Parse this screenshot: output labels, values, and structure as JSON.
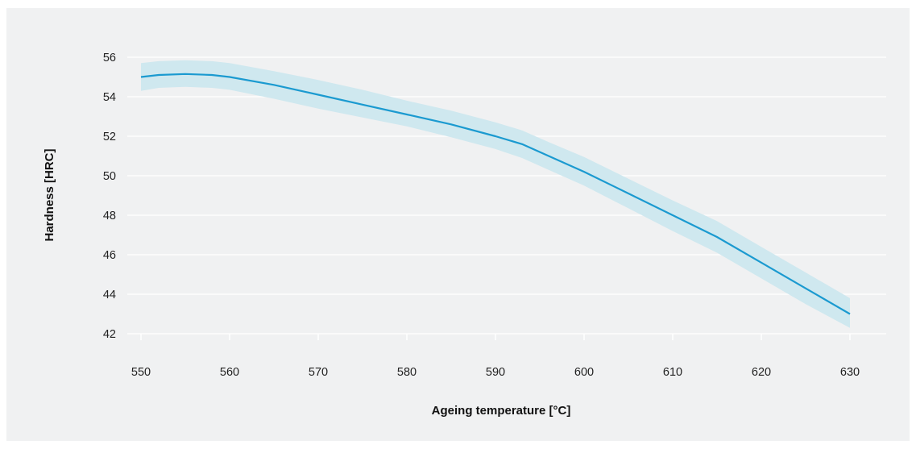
{
  "chart_data": {
    "type": "line",
    "title": "",
    "xlabel": "Ageing temperature [°C]",
    "ylabel": "Hardness [HRC]",
    "xlim": [
      550,
      630
    ],
    "ylim": [
      42,
      56
    ],
    "x_ticks": [
      550,
      560,
      570,
      580,
      590,
      600,
      610,
      620,
      630
    ],
    "y_ticks": [
      42,
      44,
      46,
      48,
      50,
      52,
      54,
      56
    ],
    "grid": "horizontal",
    "colors": {
      "line": "#1b9ad0",
      "band": "#cfe8ef",
      "grid": "#ffffff",
      "background": "#f0f1f2"
    },
    "series": [
      {
        "x": [
          550,
          552,
          555,
          558,
          560,
          565,
          570,
          575,
          580,
          585,
          590,
          593,
          596,
          600,
          605,
          610,
          615,
          620,
          625,
          630
        ],
        "y": [
          55.0,
          55.1,
          55.15,
          55.1,
          55.0,
          54.6,
          54.1,
          53.6,
          53.1,
          52.6,
          52.0,
          51.6,
          51.0,
          50.2,
          49.1,
          48.0,
          46.9,
          45.6,
          44.3,
          43.0
        ],
        "lower": [
          54.3,
          54.45,
          54.5,
          54.45,
          54.35,
          53.9,
          53.4,
          52.95,
          52.5,
          51.95,
          51.35,
          50.9,
          50.3,
          49.5,
          48.35,
          47.2,
          46.1,
          44.8,
          43.5,
          42.3
        ],
        "upper": [
          55.7,
          55.8,
          55.85,
          55.8,
          55.7,
          55.3,
          54.85,
          54.35,
          53.8,
          53.3,
          52.7,
          52.3,
          51.7,
          50.95,
          49.85,
          48.75,
          47.7,
          46.4,
          45.1,
          43.8
        ]
      }
    ]
  }
}
